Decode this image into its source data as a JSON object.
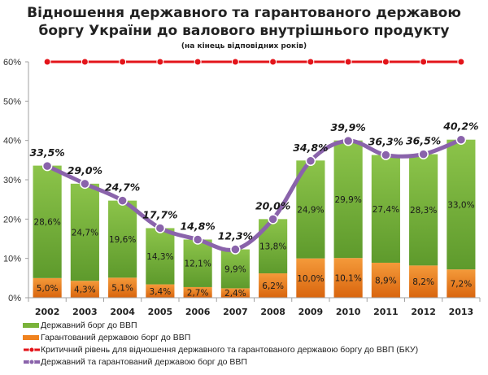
{
  "title": {
    "line1": "Відношення державного та гарантованого державою",
    "line2": "боргу України до валового внутрішнього продукту",
    "subtitle": "(на кінець відповідних років)"
  },
  "chart_data": {
    "type": "bar",
    "stacked": true,
    "title": "Відношення державного та гарантованого державою боргу України до валового внутрішнього продукту",
    "subtitle": "(на кінець відповідних років)",
    "xlabel": "",
    "ylabel": "",
    "ylim": [
      0,
      60
    ],
    "yticks": [
      "0%",
      "10%",
      "20%",
      "30%",
      "40%",
      "50%",
      "60%"
    ],
    "ytick_values": [
      0,
      10,
      20,
      30,
      40,
      50,
      60
    ],
    "grid": false,
    "legend_position": "bottom-left",
    "categories": [
      "2002",
      "2003",
      "2004",
      "2005",
      "2006",
      "2007",
      "2008",
      "2009",
      "2010",
      "2011",
      "2012",
      "2013"
    ],
    "series": [
      {
        "name": "Гарантований державою борг до ВВП",
        "type": "bar",
        "color": "#f0821e",
        "values": [
          5.0,
          4.3,
          5.1,
          3.4,
          2.7,
          2.4,
          6.2,
          10.0,
          10.1,
          8.9,
          8.2,
          7.2
        ],
        "labels": [
          "5,0%",
          "4,3%",
          "5,1%",
          "3,4%",
          "2,7%",
          "2,4%",
          "6,2%",
          "10,0%",
          "10,1%",
          "8,9%",
          "8,2%",
          "7,2%"
        ]
      },
      {
        "name": "Державний борг до ВВП",
        "type": "bar",
        "color": "#7ab33a",
        "values": [
          28.6,
          24.7,
          19.6,
          14.3,
          12.1,
          9.9,
          13.8,
          24.9,
          29.9,
          27.4,
          28.3,
          33.0
        ],
        "labels": [
          "28,6%",
          "24,7%",
          "19,6%",
          "14,3%",
          "12,1%",
          "9,9%",
          "13,8%",
          "24,9%",
          "29,9%",
          "27,4%",
          "28,3%",
          "33,0%"
        ]
      },
      {
        "name": "Критичний рівень для відношення державного та гарантованого державою боргу до ВВП (БКУ)",
        "type": "line",
        "color": "#e3141a",
        "values": [
          60,
          60,
          60,
          60,
          60,
          60,
          60,
          60,
          60,
          60,
          60,
          60
        ]
      },
      {
        "name": "Державний та гарантований державою борг до ВВП",
        "type": "line",
        "color": "#8a63ab",
        "values": [
          33.5,
          29.0,
          24.7,
          17.7,
          14.8,
          12.3,
          20.0,
          34.8,
          39.9,
          36.3,
          36.5,
          40.2
        ],
        "labels": [
          "33,5%",
          "29,0%",
          "24,7%",
          "17,7%",
          "14,8%",
          "12,3%",
          "20,0%",
          "34,8%",
          "39,9%",
          "36,3%",
          "36,5%",
          "40,2%"
        ]
      }
    ]
  },
  "legend": [
    {
      "label": "Державний борг до ВВП",
      "icon": "green-bar-swatch"
    },
    {
      "label": "Гарантований державою борг до ВВП",
      "icon": "orange-bar-swatch"
    },
    {
      "label": "Критичний рівень для відношення державного та гарантованого державою боргу до ВВП (БКУ)",
      "icon": "red-line-marker-swatch"
    },
    {
      "label": "Державний та гарантований державою борг до ВВП",
      "icon": "purple-line-marker-swatch"
    }
  ]
}
